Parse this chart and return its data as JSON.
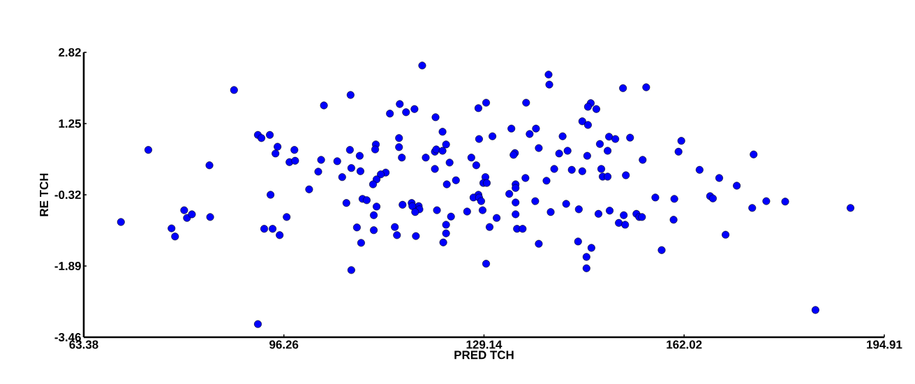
{
  "chart_data": {
    "type": "scatter",
    "xlabel": "PRED TCH",
    "ylabel": "RE TCH",
    "color": "#0000ff",
    "marker": "circle",
    "xlim": [
      63.38,
      194.91
    ],
    "ylim": [
      -3.46,
      2.82
    ],
    "xticks": [
      63.38,
      96.26,
      129.14,
      162.02,
      194.91
    ],
    "yticks": [
      -3.46,
      -1.89,
      -0.32,
      1.25,
      2.82
    ],
    "x": [
      88.07,
      73.99,
      84.03,
      91.99,
      92.57,
      93.95,
      95.22,
      94.88,
      97.99,
      97.18,
      98.11,
      94.07,
      69.49,
      79.88,
      80.34,
      81.15,
      77.8,
      78.38,
      84.15,
      96.72,
      93.03,
      94.41,
      95.57,
      91.99,
      118.99,
      107.22,
      102.84,
      115.3,
      117.72,
      116.33,
      113.68,
      129.49,
      128.22,
      121.18,
      122.33,
      128.33,
      130.53,
      115.18,
      111.37,
      111.26,
      115.18,
      102.38,
      105.03,
      107.11,
      108.72,
      101.91,
      107.34,
      108.84,
      105.84,
      115.64,
      119.57,
      121.07,
      121.3,
      122.33,
      122.91,
      123.49,
      121.07,
      127.06,
      127.87,
      112.99,
      112.18,
      111.49,
      110.91,
      124.53,
      123.03,
      129.37,
      129.03,
      129.6,
      100.41,
      128.22,
      127.41,
      128.33,
      128.68,
      106.53,
      109.18,
      109.87,
      111.49,
      111.03,
      115.76,
      117.26,
      118.41,
      117.37,
      118.53,
      117.83,
      121.41,
      123.72,
      122.91,
      122.91,
      122.45,
      126.37,
      128.91,
      131.22,
      130.06,
      108.26,
      111.03,
      108.95,
      114.49,
      114.84,
      117.95,
      129.49,
      107.34,
      139.75,
      139.87,
      151.98,
      155.79,
      136.06,
      146.68,
      146.22,
      147.6,
      145.29,
      146.22,
      133.64,
      137.68,
      136.64,
      142.06,
      149.68,
      150.72,
      153.14,
      161.56,
      161.1,
      148.18,
      149.45,
      138.14,
      134.22,
      133.99,
      141.49,
      142.87,
      146.1,
      155.21,
      140.68,
      143.56,
      145.29,
      148.41,
      148.64,
      149.45,
      152.45,
      164.56,
      135.95,
      139.41,
      134.33,
      134.33,
      133.29,
      157.29,
      160.41,
      134.33,
      137.56,
      142.64,
      134.33,
      140.1,
      144.72,
      147.95,
      149.79,
      152.1,
      154.18,
      154.64,
      155.1,
      151.29,
      152.33,
      160.29,
      134.56,
      135.49,
      138.14,
      144.6,
      146.79,
      158.33,
      145.98,
      145.98,
      173.44,
      167.79,
      170.67,
      166.29,
      166.75,
      173.21,
      175.52,
      178.63,
      189.36,
      168.83,
      183.6
    ],
    "values": [
      1.99,
      0.67,
      0.33,
      1.0,
      0.93,
      1.0,
      0.74,
      0.59,
      0.67,
      0.4,
      0.43,
      -0.32,
      -0.92,
      -0.66,
      -0.83,
      -0.75,
      -1.06,
      -1.24,
      -0.81,
      -0.81,
      -1.07,
      -1.07,
      -1.21,
      -3.17,
      2.53,
      1.88,
      1.65,
      1.68,
      1.57,
      1.5,
      1.47,
      1.71,
      1.59,
      1.39,
      1.07,
      0.91,
      0.97,
      0.93,
      0.79,
      0.68,
      0.73,
      0.45,
      0.42,
      0.67,
      0.54,
      0.19,
      0.27,
      0.2,
      0.07,
      0.5,
      0.5,
      0.63,
      0.68,
      0.65,
      0.79,
      0.39,
      0.25,
      0.5,
      0.33,
      0.17,
      0.13,
      0.02,
      -0.09,
      0.0,
      -0.09,
      0.07,
      -0.06,
      -0.06,
      -0.2,
      -0.32,
      -0.38,
      -0.38,
      -0.46,
      -0.5,
      -0.41,
      -0.44,
      -0.58,
      -0.77,
      -0.54,
      -0.5,
      -0.57,
      -0.57,
      -0.64,
      -0.7,
      -0.66,
      -0.8,
      -0.98,
      -1.17,
      -1.37,
      -0.69,
      -0.66,
      -0.83,
      -1.03,
      -1.04,
      -1.1,
      -1.38,
      -1.03,
      -1.21,
      -1.23,
      -1.84,
      -1.98,
      2.33,
      2.11,
      2.03,
      2.05,
      1.71,
      1.7,
      1.62,
      1.57,
      1.3,
      1.22,
      1.14,
      1.14,
      1.02,
      0.97,
      0.96,
      0.91,
      0.94,
      0.87,
      0.63,
      0.8,
      0.65,
      0.71,
      0.6,
      0.56,
      0.59,
      0.65,
      0.54,
      0.45,
      0.25,
      0.23,
      0.2,
      0.25,
      0.08,
      0.08,
      0.11,
      0.23,
      0.05,
      -0.01,
      -0.09,
      -0.17,
      -0.3,
      -0.38,
      -0.41,
      -0.49,
      -0.46,
      -0.52,
      -0.75,
      -0.7,
      -0.64,
      -0.74,
      -0.67,
      -0.77,
      -0.74,
      -0.81,
      -0.81,
      -0.94,
      -0.98,
      -0.87,
      -1.07,
      -1.07,
      -1.4,
      -1.35,
      -1.49,
      -1.54,
      -1.69,
      -1.94,
      0.57,
      0.05,
      -0.12,
      -0.35,
      -0.4,
      -0.61,
      -0.46,
      -0.47,
      -0.61,
      -1.2,
      -2.86
    ]
  }
}
